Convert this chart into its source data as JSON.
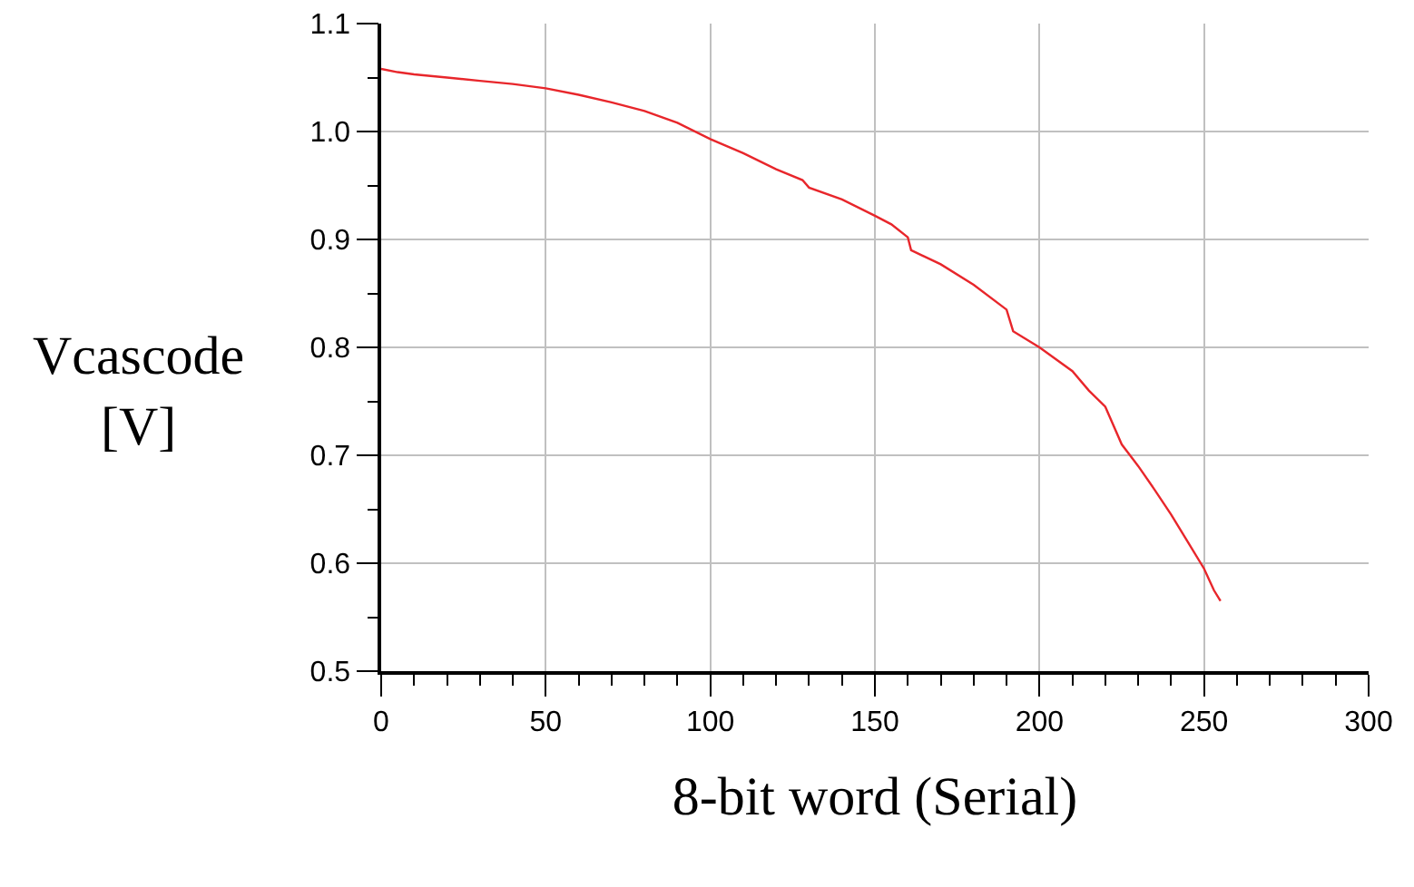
{
  "chart_data": {
    "type": "line",
    "xlabel": "8-bit word (Serial)",
    "ylabel": "Vcascode\n[V]",
    "x": [
      0,
      5,
      10,
      20,
      30,
      40,
      50,
      60,
      70,
      80,
      90,
      100,
      110,
      120,
      128,
      130,
      140,
      150,
      155,
      160,
      161,
      170,
      180,
      190,
      192,
      200,
      210,
      215,
      220,
      225,
      230,
      235,
      240,
      245,
      250,
      253,
      255
    ],
    "series": [
      {
        "color": "#e8262b",
        "values": [
          1.058,
          1.055,
          1.053,
          1.05,
          1.047,
          1.044,
          1.04,
          1.034,
          1.027,
          1.019,
          1.008,
          0.993,
          0.98,
          0.965,
          0.955,
          0.948,
          0.937,
          0.922,
          0.914,
          0.902,
          0.89,
          0.877,
          0.858,
          0.835,
          0.815,
          0.8,
          0.778,
          0.76,
          0.745,
          0.71,
          0.69,
          0.668,
          0.645,
          0.62,
          0.595,
          0.575,
          0.565
        ]
      }
    ],
    "xlim": [
      0,
      300
    ],
    "xticks": [
      0,
      50,
      100,
      150,
      200,
      250,
      300
    ],
    "ylim": [
      0.5,
      1.1
    ],
    "yticks": [
      {
        "value": 0.5,
        "label": "0.5"
      },
      {
        "value": 0.6,
        "label": "0.6"
      },
      {
        "value": 0.7,
        "label": "0.7"
      },
      {
        "value": 0.8,
        "label": "0.8"
      },
      {
        "value": 0.9,
        "label": "0.9"
      },
      {
        "value": 1.0,
        "label": "1.0"
      },
      {
        "value": 1.1,
        "label": "1.1"
      }
    ],
    "grid": true,
    "marker": "none",
    "line_style": "solid"
  }
}
